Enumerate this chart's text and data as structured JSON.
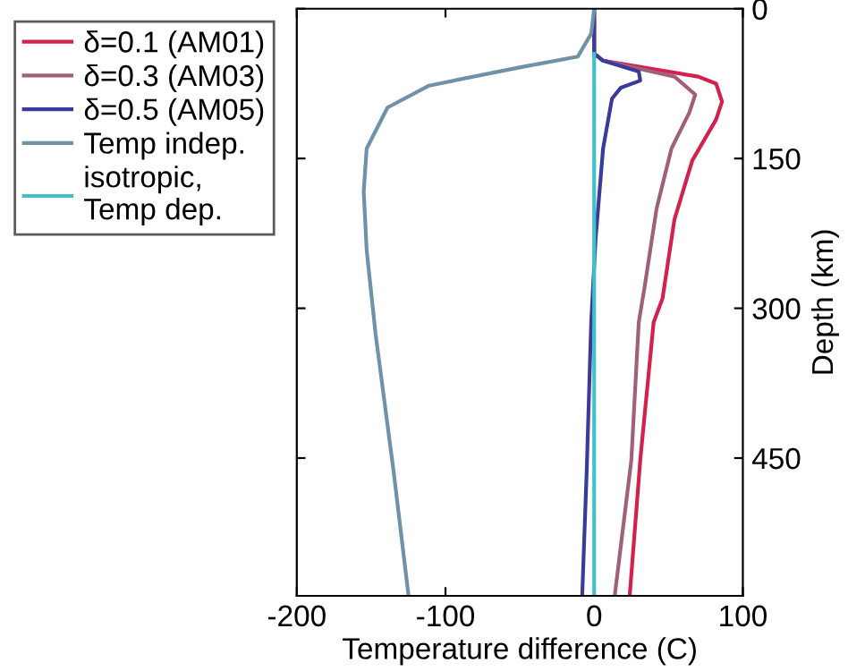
{
  "chart_data": {
    "type": "line",
    "xlabel": "Temperature difference (C)",
    "ylabel": "Depth (km)",
    "xlim": [
      -200,
      100
    ],
    "xticks": [
      -200,
      -100,
      0,
      100
    ],
    "ylim": [
      588,
      0
    ],
    "yticks": [
      0,
      150,
      300,
      450
    ],
    "legend": "top left",
    "grid": false,
    "line_style": "solid",
    "series": [
      {
        "name": "δ=0.1 (AM01)",
        "color": "#d4204c",
        "x": [
          0,
          0,
          6,
          70,
          82,
          86,
          82,
          66,
          54,
          46,
          40,
          31,
          24
        ],
        "values": [
          0,
          45,
          52,
          68,
          75,
          93,
          111,
          152,
          211,
          290,
          314,
          452,
          586
        ]
      },
      {
        "name": "δ=0.3 (AM03)",
        "color": "#a0607a",
        "x": [
          0,
          0,
          6,
          54,
          68,
          64,
          52,
          42,
          34,
          30,
          25,
          14
        ],
        "values": [
          0,
          45,
          52,
          68,
          86,
          104,
          140,
          200,
          278,
          314,
          452,
          586
        ]
      },
      {
        "name": "δ=0.5 (AM05)",
        "color": "#3a3a9a",
        "x": [
          0,
          0,
          6,
          30,
          31,
          18,
          12,
          6,
          1,
          -2,
          -5,
          -8
        ],
        "values": [
          0,
          45,
          52,
          63,
          72,
          79,
          90,
          140,
          230,
          314,
          462,
          586
        ]
      },
      {
        "name": "Temp indep.",
        "color": "#6f92a8",
        "x": [
          0,
          -2,
          -11,
          -51,
          -111,
          -139,
          -153,
          -155,
          -153,
          -147,
          -135,
          -125
        ],
        "values": [
          0,
          25,
          48,
          59,
          77,
          99,
          140,
          183,
          242,
          326,
          462,
          586
        ]
      },
      {
        "name": "isotropic,\nTemp dep.",
        "color": "#3fc1c9",
        "x": [
          0,
          0
        ],
        "values": [
          45,
          588
        ]
      }
    ]
  }
}
